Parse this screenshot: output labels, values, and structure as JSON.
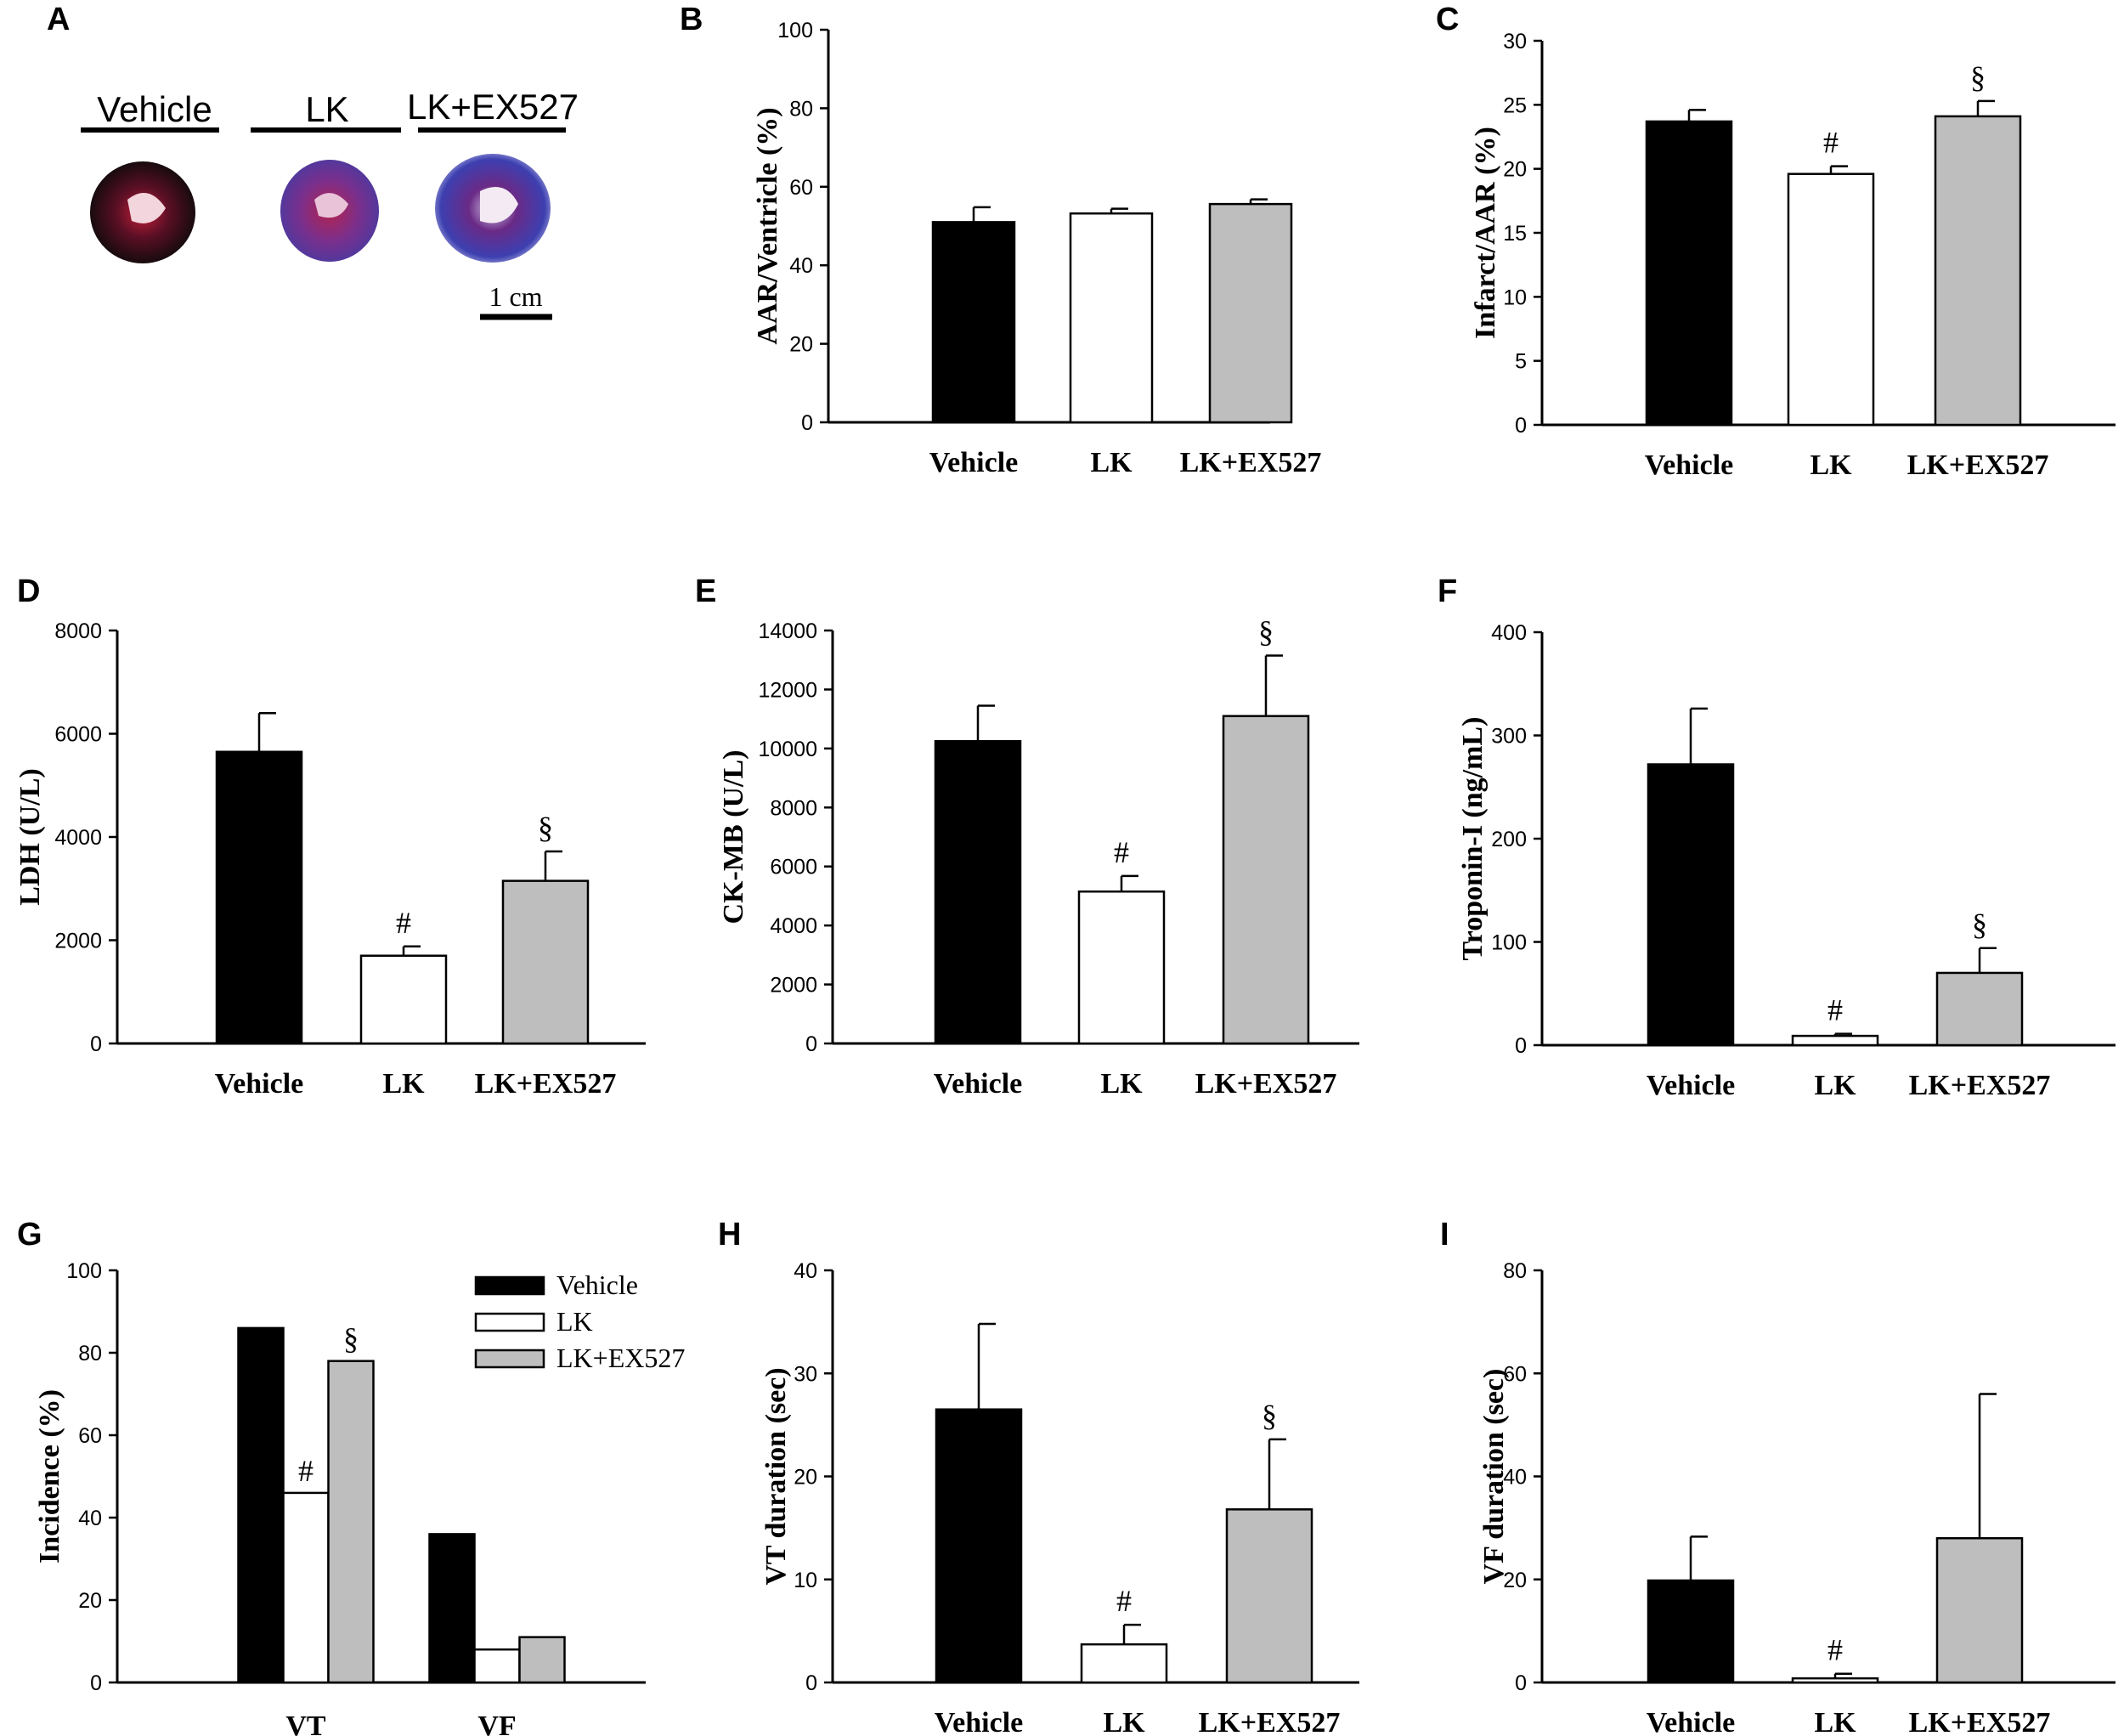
{
  "colors": {
    "Vehicle": "#000000",
    "LK": "#ffffff",
    "LK+EX527": "#bebebe"
  },
  "panel_a": {
    "letter": "A",
    "groups": [
      "Vehicle",
      "LK",
      "LK+EX527"
    ],
    "scale_bar": "1 cm"
  },
  "chart_data": [
    {
      "panel": "B",
      "type": "bar",
      "title": "",
      "categories": [
        "Vehicle",
        "LK",
        "LK+EX527"
      ],
      "values": [
        51,
        53.2,
        55.6
      ],
      "errors": [
        3.8,
        1.2,
        1.2
      ],
      "significance": [
        "",
        "",
        ""
      ],
      "ylabel": "AAR/Ventricle (%)",
      "xlabel": "",
      "ylim": [
        0,
        100
      ],
      "yticks": [
        0,
        20,
        40,
        60,
        80,
        100
      ]
    },
    {
      "panel": "C",
      "type": "bar",
      "title": "",
      "categories": [
        "Vehicle",
        "LK",
        "LK+EX527"
      ],
      "values": [
        23.7,
        19.6,
        24.1
      ],
      "errors": [
        0.9,
        0.6,
        1.2
      ],
      "significance": [
        "",
        "#",
        "§"
      ],
      "ylabel": "Infarct/AAR (%)",
      "xlabel": "",
      "ylim": [
        0,
        30
      ],
      "yticks": [
        0,
        5,
        10,
        15,
        20,
        25,
        30
      ]
    },
    {
      "panel": "D",
      "type": "bar",
      "title": "",
      "categories": [
        "Vehicle",
        "LK",
        "LK+EX527"
      ],
      "values": [
        5650,
        1700,
        3150
      ],
      "errors": [
        750,
        180,
        570
      ],
      "significance": [
        "",
        "#",
        "§"
      ],
      "ylabel": "LDH (U/L)",
      "xlabel": "",
      "ylim": [
        0,
        8000
      ],
      "yticks": [
        0,
        2000,
        4000,
        6000,
        8000
      ]
    },
    {
      "panel": "E",
      "type": "bar",
      "title": "",
      "categories": [
        "Vehicle",
        "LK",
        "LK+EX527"
      ],
      "values": [
        10250,
        5150,
        11100
      ],
      "errors": [
        1200,
        530,
        2050
      ],
      "significance": [
        "",
        "#",
        "§"
      ],
      "ylabel": "CK-MB (U/L)",
      "xlabel": "",
      "ylim": [
        0,
        14000
      ],
      "yticks": [
        0,
        2000,
        4000,
        6000,
        8000,
        10000,
        12000,
        14000
      ]
    },
    {
      "panel": "F",
      "type": "bar",
      "title": "",
      "categories": [
        "Vehicle",
        "LK",
        "LK+EX527"
      ],
      "values": [
        272,
        9,
        70
      ],
      "errors": [
        54,
        2,
        24
      ],
      "significance": [
        "",
        "#",
        "§"
      ],
      "ylabel": "Troponin-I (ng/mL)",
      "xlabel": "",
      "ylim": [
        0,
        400
      ],
      "yticks": [
        0,
        100,
        200,
        300,
        400
      ]
    },
    {
      "panel": "G",
      "type": "bar",
      "title": "",
      "categories": [
        "VT",
        "VF"
      ],
      "series": [
        {
          "name": "Vehicle",
          "values": [
            86,
            36
          ]
        },
        {
          "name": "LK",
          "values": [
            46,
            8
          ]
        },
        {
          "name": "LK+EX527",
          "values": [
            78,
            11
          ]
        }
      ],
      "significance": [
        [
          "",
          "#",
          "§"
        ],
        [
          "",
          "",
          ""
        ]
      ],
      "legend": [
        "Vehicle",
        "LK",
        "LK+EX527"
      ],
      "legend_position": "top-right",
      "ylabel": "Incidence (%)",
      "xlabel": "",
      "ylim": [
        0,
        100
      ],
      "yticks": [
        0,
        20,
        40,
        60,
        80,
        100
      ]
    },
    {
      "panel": "H",
      "type": "bar",
      "title": "",
      "categories": [
        "Vehicle",
        "LK",
        "LK+EX527"
      ],
      "values": [
        26.5,
        3.7,
        16.8
      ],
      "errors": [
        8.3,
        1.9,
        6.8
      ],
      "significance": [
        "",
        "#",
        "§"
      ],
      "ylabel": "VT duration (sec)",
      "xlabel": "",
      "ylim": [
        0,
        40
      ],
      "yticks": [
        0,
        10,
        20,
        30,
        40
      ]
    },
    {
      "panel": "I",
      "type": "bar",
      "title": "",
      "categories": [
        "Vehicle",
        "LK",
        "LK+EX527"
      ],
      "values": [
        19.8,
        0.8,
        28
      ],
      "errors": [
        8.5,
        0.9,
        28
      ],
      "significance": [
        "",
        "#",
        ""
      ],
      "ylabel": "VF duration (sec)",
      "xlabel": "",
      "ylim": [
        0,
        80
      ],
      "yticks": [
        0,
        20,
        40,
        60,
        80
      ]
    }
  ]
}
